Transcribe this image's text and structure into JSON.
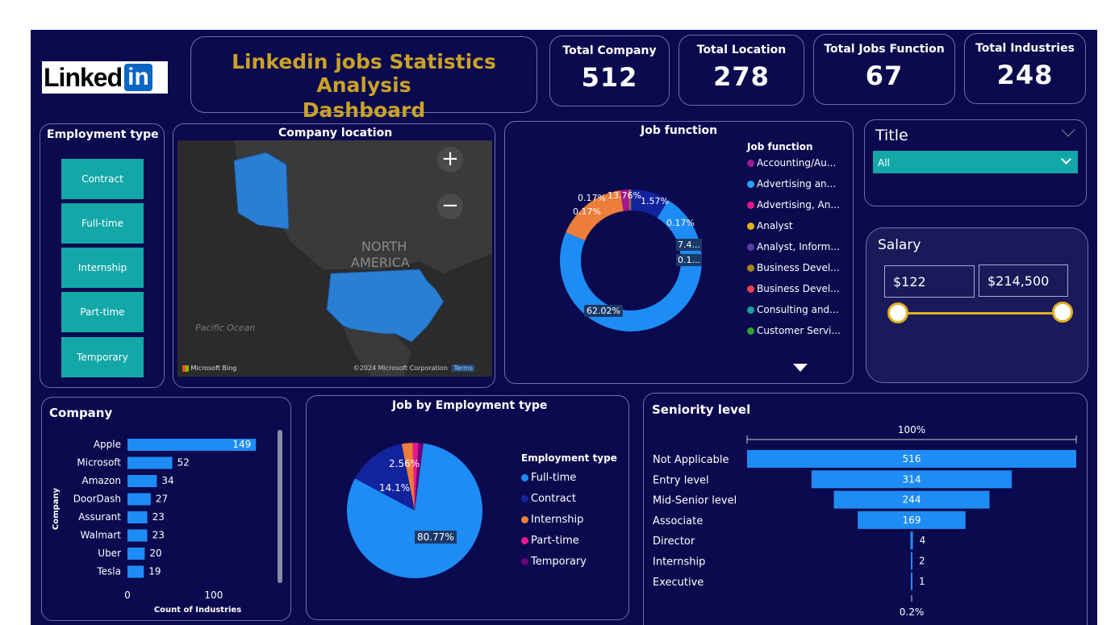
{
  "header": {
    "logo_text": "Linked",
    "logo_in": "in",
    "title_line1": "Linkedin jobs Statistics Analysis",
    "title_line2": "Dashboard"
  },
  "kpis": [
    {
      "label": "Total Company",
      "value": "512"
    },
    {
      "label": "Total Location",
      "value": "278"
    },
    {
      "label": "Total Jobs Function",
      "value": "67"
    },
    {
      "label": "Total Industries",
      "value": "248"
    }
  ],
  "employment_type": {
    "title": "Employment type",
    "buttons": [
      "Contract",
      "Full-time",
      "Internship",
      "Part-time",
      "Temporary"
    ]
  },
  "map": {
    "title": "Company location",
    "zoom_in": "+",
    "zoom_out": "−",
    "label_region_1": "NORTH",
    "label_region_2": "AMERICA",
    "label_ocean": "Pacific Ocean",
    "attribution_brand": "Microsoft Bing",
    "attribution_copy": "©2024 Microsoft Corporation",
    "attribution_terms": "Terms"
  },
  "title_filter": {
    "title": "Title",
    "selected": "All"
  },
  "salary": {
    "title": "Salary",
    "min": "$122",
    "max": "$214,500"
  },
  "chart_data": [
    {
      "type": "pie",
      "variant": "donut",
      "title": "Job function",
      "legend_title": "Job function",
      "legend": [
        "Accounting/Au...",
        "Advertising an...",
        "Advertising, An...",
        "Analyst",
        "Analyst, Inform...",
        "Business Devel...",
        "Business Devel...",
        "Consulting and...",
        "Customer Servi..."
      ],
      "legend_colors": [
        "#a01890",
        "#1fa8f0",
        "#e8188f",
        "#e3b514",
        "#5a3fa8",
        "#a8861a",
        "#f0404a",
        "#1aa39a",
        "#2fa52f"
      ],
      "slice_labels": [
        "62.02%",
        "13.76%",
        "1.57%",
        "0.17%",
        "0.17%",
        "0.17%",
        "7.4...",
        "0.1..."
      ],
      "slices": [
        {
          "value": 62.02,
          "color": "#1e8cf5"
        },
        {
          "value": 13.76,
          "color": "#ed7d3b"
        },
        {
          "value": 1.57,
          "color": "#a01890"
        },
        {
          "value": 0.17,
          "color": "#e8188f"
        },
        {
          "value": 0.17,
          "color": "#e3b514"
        },
        {
          "value": 0.17,
          "color": "#5a3fa8"
        },
        {
          "value": 7.4,
          "color": "#12239e"
        },
        {
          "value": 0.1,
          "color": "#2fa52f"
        }
      ]
    },
    {
      "type": "bar",
      "orientation": "horizontal",
      "title": "Company",
      "xlabel": "Count of Industries",
      "ylabel": "Company",
      "categories": [
        "Apple",
        "Microsoft",
        "Amazon",
        "DoorDash",
        "Assurant",
        "Walmart",
        "Uber",
        "Tesla"
      ],
      "values": [
        149,
        52,
        34,
        27,
        23,
        23,
        20,
        19
      ],
      "xticks": [
        "0",
        "100"
      ],
      "xlim": [
        0,
        160
      ],
      "color": "#1e8cf5"
    },
    {
      "type": "pie",
      "title": "Job by Employment type",
      "legend_title": "Employment type",
      "categories": [
        "Full-time",
        "Contract",
        "Internship",
        "Part-time",
        "Temporary"
      ],
      "values": [
        80.77,
        14.1,
        2.56,
        1.4,
        1.17
      ],
      "colors": [
        "#1e8cf5",
        "#12239e",
        "#ed7d3b",
        "#e8188f",
        "#6b007b"
      ],
      "labels": [
        "80.77%",
        "14.1%",
        "2.56%",
        "",
        ""
      ]
    },
    {
      "type": "bar",
      "variant": "funnel",
      "title": "Seniority level",
      "top_label": "100%",
      "bottom_label": "0.2%",
      "categories": [
        "Not Applicable",
        "Entry level",
        "Mid-Senior level",
        "Associate",
        "Director",
        "Internship",
        "Executive"
      ],
      "values": [
        516,
        314,
        244,
        169,
        4,
        2,
        1
      ],
      "color": "#1e8cf5"
    }
  ]
}
